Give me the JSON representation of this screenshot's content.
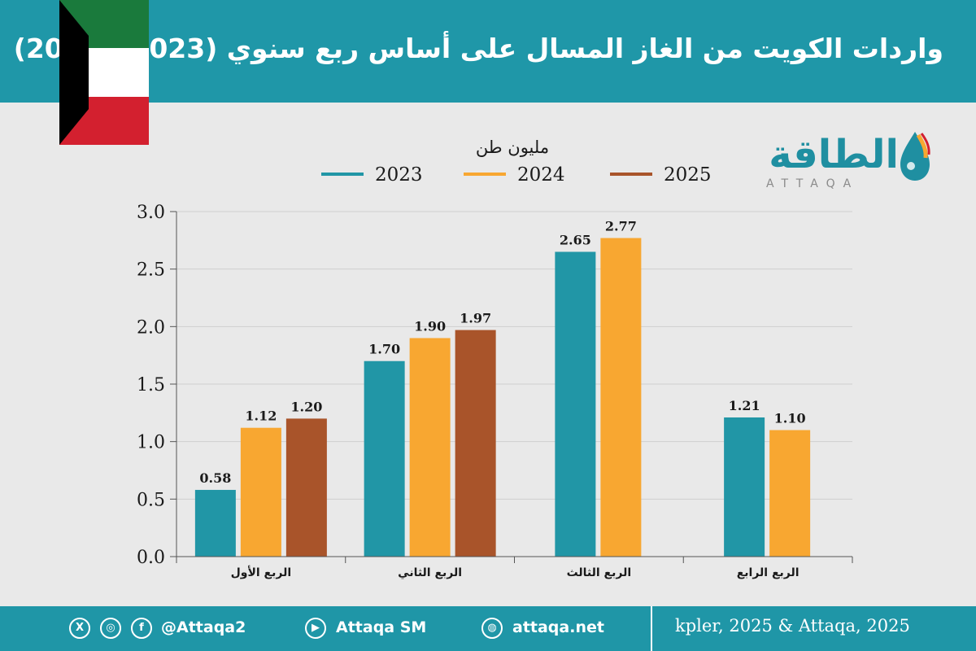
{
  "header": {
    "title": "واردات الكويت من الغاز المسال على أساس ربع سنوي (2023 - 2025)"
  },
  "logo": {
    "arabic": "الطاقة",
    "english": "ATTAQA"
  },
  "colors": {
    "header": "#2196a6",
    "series_2023": "#2196a6",
    "series_2024": "#f8a731",
    "series_2025": "#a9542a",
    "flag_green": "#1a7a3c",
    "flag_white": "#ffffff",
    "flag_red": "#d3202f",
    "flag_black": "#000000"
  },
  "chart_data": {
    "type": "bar",
    "title": "",
    "unit_label": "مليون طن",
    "xlabel": "",
    "ylabel": "",
    "ylim": [
      0,
      3.0
    ],
    "yticks": [
      "0.0",
      "0.5",
      "1.0",
      "1.5",
      "2.0",
      "2.5",
      "3.0"
    ],
    "categories": [
      "الربع الأول",
      "الربع الثاني",
      "الربع الثالث",
      "الربع الرابع"
    ],
    "series": [
      {
        "name": "2023",
        "values": [
          0.58,
          1.7,
          2.65,
          1.21
        ],
        "labels": [
          "0.58",
          "1.70",
          "2.65",
          "1.21"
        ],
        "color": "#2196a6"
      },
      {
        "name": "2024",
        "values": [
          1.12,
          1.9,
          2.77,
          1.1
        ],
        "labels": [
          "1.12",
          "1.90",
          "2.77",
          "1.10"
        ],
        "color": "#f8a731"
      },
      {
        "name": "2025",
        "values": [
          1.2,
          1.97,
          null,
          null
        ],
        "labels": [
          "1.20",
          "1.97",
          "",
          ""
        ],
        "color": "#a9542a"
      }
    ],
    "legend_position": "top",
    "grid": true
  },
  "footer": {
    "twitter_icon": "x-icon",
    "instagram_icon": "instagram-icon",
    "facebook_icon": "facebook-icon",
    "handle": "@Attaqa2",
    "youtube_icon": "youtube-icon",
    "youtube": "Attaqa SM",
    "web_icon": "globe-icon",
    "website": "attaqa.net",
    "source": "kpler, 2025 & Attaqa, 2025"
  }
}
